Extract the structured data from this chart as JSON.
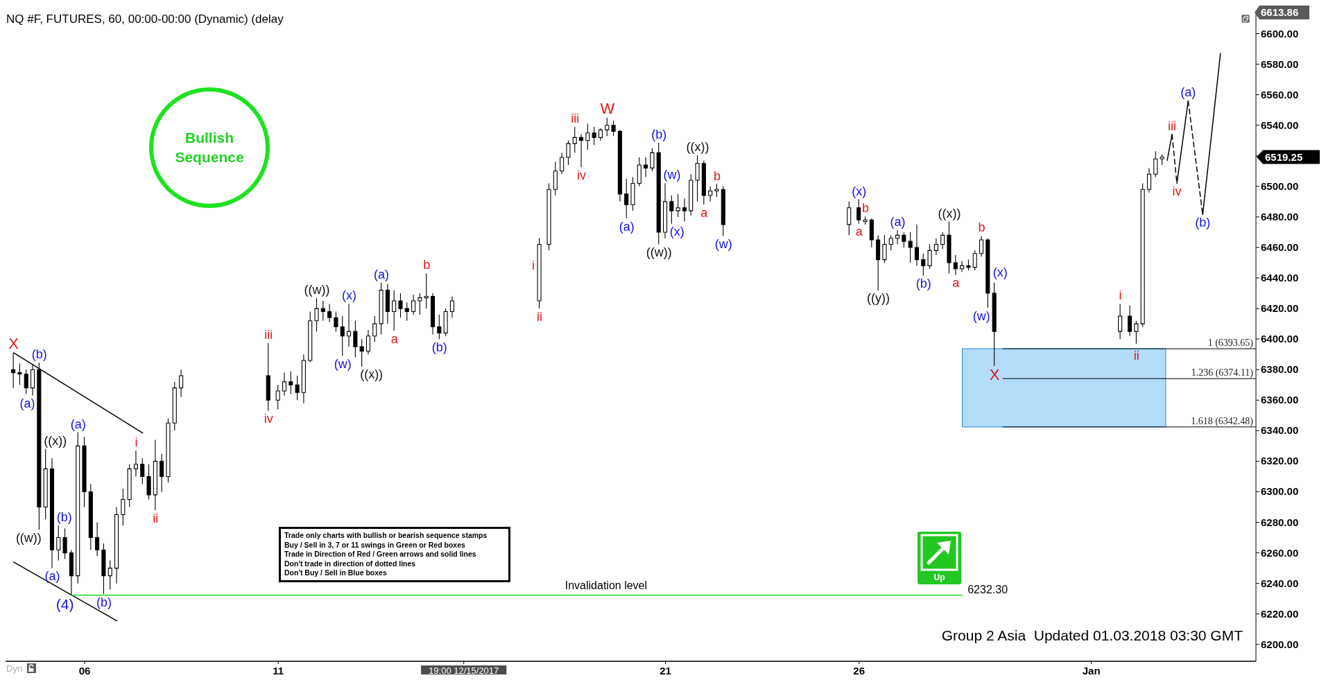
{
  "chart_data": {
    "type": "candlestick",
    "title": "NQ #F, FUTURES, 60, 00:00-00:00 (Dynamic) (delay",
    "color": "#000000",
    "x": [
      "2017-12-04T04:00",
      "2017-12-04T08:00",
      "2017-12-04T12:00",
      "2017-12-04T16:00",
      "2017-12-04T20:00",
      "2017-12-05T00:00",
      "2017-12-05T04:00",
      "2017-12-05T08:00",
      "2017-12-05T12:00",
      "2017-12-05T16:00",
      "2017-12-05T20:00",
      "2017-12-06T00:00",
      "2017-12-06T04:00",
      "2017-12-06T08:00",
      "2017-12-06T12:00",
      "2017-12-06T16:00",
      "2017-12-06T20:00",
      "2017-12-07T00:00",
      "2017-12-07T04:00",
      "2017-12-07T08:00",
      "2017-12-07T12:00",
      "2017-12-07T16:00",
      "2017-12-07T20:00",
      "2017-12-08T00:00",
      "2017-12-08T04:00",
      "2017-12-08T08:00",
      "2017-12-08T12:00",
      "2017-12-10T18:00",
      "2017-12-11T00:00",
      "2017-12-11T04:00",
      "2017-12-11T08:00",
      "2017-12-11T12:00",
      "2017-12-11T16:00",
      "2017-12-11T20:00",
      "2017-12-12T00:00",
      "2017-12-12T04:00",
      "2017-12-12T08:00",
      "2017-12-12T12:00",
      "2017-12-12T16:00",
      "2017-12-12T20:00",
      "2017-12-13T00:00",
      "2017-12-13T04:00",
      "2017-12-13T08:00",
      "2017-12-13T12:00",
      "2017-12-13T16:00",
      "2017-12-13T20:00",
      "2017-12-14T00:00",
      "2017-12-14T04:00",
      "2017-12-14T08:00",
      "2017-12-14T12:00",
      "2017-12-14T16:00",
      "2017-12-14T20:00",
      "2017-12-15T00:00",
      "2017-12-15T04:00",
      "2017-12-15T08:00",
      "2017-12-15T12:00",
      "2017-12-17T18:00",
      "2017-12-18T00:00",
      "2017-12-18T04:00",
      "2017-12-18T08:00",
      "2017-12-18T12:00",
      "2017-12-18T16:00",
      "2017-12-18T20:00",
      "2017-12-19T00:00",
      "2017-12-19T04:00",
      "2017-12-19T08:00",
      "2017-12-19T12:00",
      "2017-12-19T16:00",
      "2017-12-19T20:00",
      "2017-12-20T00:00",
      "2017-12-20T04:00",
      "2017-12-20T08:00",
      "2017-12-20T12:00",
      "2017-12-20T16:00",
      "2017-12-20T20:00",
      "2017-12-21T00:00",
      "2017-12-21T04:00",
      "2017-12-21T08:00",
      "2017-12-21T12:00",
      "2017-12-21T16:00",
      "2017-12-21T20:00",
      "2017-12-22T00:00",
      "2017-12-22T04:00",
      "2017-12-22T08:00",
      "2017-12-22T12:00",
      "2017-12-25T18:00",
      "2017-12-26T00:00",
      "2017-12-26T04:00",
      "2017-12-26T08:00",
      "2017-12-26T12:00",
      "2017-12-26T16:00",
      "2017-12-26T20:00",
      "2017-12-27T00:00",
      "2017-12-27T04:00",
      "2017-12-27T08:00",
      "2017-12-27T12:00",
      "2017-12-27T16:00",
      "2017-12-27T20:00",
      "2017-12-28T00:00",
      "2017-12-28T04:00",
      "2017-12-28T08:00",
      "2017-12-28T12:00",
      "2017-12-28T16:00",
      "2017-12-28T20:00",
      "2017-12-29T00:00",
      "2017-12-29T04:00",
      "2017-12-29T08:00",
      "2017-12-29T12:00",
      "2018-01-01T18:00",
      "2018-01-02T00:00",
      "2018-01-02T04:00",
      "2018-01-02T08:00",
      "2018-01-02T12:00",
      "2018-01-02T16:00",
      "2018-01-02T20:00"
    ],
    "ohlc": [
      [
        6380,
        6391,
        6368,
        6378
      ],
      [
        6378,
        6384,
        6370,
        6377
      ],
      [
        6377,
        6380,
        6364,
        6368
      ],
      [
        6368,
        6383,
        6363,
        6380
      ],
      [
        6380,
        6384.5,
        6275,
        6290
      ],
      [
        6290,
        6328,
        6282,
        6315
      ],
      [
        6315,
        6322,
        6250,
        6262
      ],
      [
        6262,
        6278,
        6255,
        6270
      ],
      [
        6270,
        6276,
        6256,
        6260
      ],
      [
        6260,
        6262,
        6232.25,
        6245
      ],
      [
        6245,
        6339,
        6240,
        6330
      ],
      [
        6330,
        6336,
        6290,
        6300
      ],
      [
        6300,
        6305,
        6262,
        6270
      ],
      [
        6270,
        6280,
        6258,
        6262
      ],
      [
        6262,
        6266,
        6233,
        6245
      ],
      [
        6245,
        6255,
        6236,
        6250
      ],
      [
        6250,
        6290,
        6240,
        6285
      ],
      [
        6285,
        6302,
        6278,
        6295
      ],
      [
        6295,
        6318,
        6290,
        6315
      ],
      [
        6315,
        6327,
        6310,
        6318
      ],
      [
        6318,
        6322,
        6305,
        6310
      ],
      [
        6310,
        6318,
        6295,
        6298
      ],
      [
        6298,
        6334,
        6288,
        6320
      ],
      [
        6320,
        6325,
        6300,
        6310
      ],
      [
        6310,
        6348,
        6306,
        6345
      ],
      [
        6345,
        6372,
        6340,
        6368
      ],
      [
        6368,
        6380,
        6362,
        6376
      ],
      [
        6376,
        6397.5,
        6353,
        6360
      ],
      [
        6360,
        6370,
        6354,
        6366
      ],
      [
        6366,
        6378,
        6363,
        6372
      ],
      [
        6372,
        6379,
        6364,
        6370
      ],
      [
        6370,
        6376,
        6360,
        6365
      ],
      [
        6365,
        6390,
        6358,
        6386
      ],
      [
        6386,
        6418,
        6385,
        6412
      ],
      [
        6412,
        6427,
        6405,
        6420
      ],
      [
        6420,
        6425,
        6412,
        6418
      ],
      [
        6418,
        6423,
        6411,
        6414
      ],
      [
        6414,
        6418,
        6405,
        6408
      ],
      [
        6408,
        6415,
        6389,
        6402
      ],
      [
        6402,
        6423,
        6395,
        6405
      ],
      [
        6405,
        6412,
        6388,
        6395
      ],
      [
        6395,
        6400,
        6382,
        6392
      ],
      [
        6392,
        6406,
        6390,
        6402
      ],
      [
        6402,
        6415,
        6398,
        6410
      ],
      [
        6410,
        6437,
        6403,
        6432
      ],
      [
        6432,
        6436,
        6410,
        6418
      ],
      [
        6418,
        6432,
        6405.5,
        6425
      ],
      [
        6425,
        6430,
        6414,
        6420
      ],
      [
        6420,
        6424,
        6412,
        6418
      ],
      [
        6418,
        6429,
        6416,
        6425
      ],
      [
        6425,
        6430,
        6416,
        6427
      ],
      [
        6427,
        6443,
        6420,
        6428
      ],
      [
        6428,
        6430,
        6403,
        6408
      ],
      [
        6408,
        6416,
        6400,
        6404
      ],
      [
        6404,
        6420,
        6402,
        6418
      ],
      [
        6418,
        6428,
        6414,
        6425
      ],
      [
        6425,
        6466,
        6420,
        6462
      ],
      [
        6462,
        6502,
        6458,
        6498
      ],
      [
        6498,
        6516,
        6494,
        6510
      ],
      [
        6510,
        6522,
        6508,
        6519
      ],
      [
        6519,
        6530,
        6514,
        6528
      ],
      [
        6528,
        6539,
        6522,
        6532
      ],
      [
        6532,
        6534,
        6512.5,
        6530
      ],
      [
        6530,
        6541,
        6524,
        6535
      ],
      [
        6535,
        6539,
        6527,
        6532
      ],
      [
        6532,
        6538,
        6530,
        6537
      ],
      [
        6537,
        6545,
        6533,
        6540
      ],
      [
        6540,
        6543,
        6533,
        6536
      ],
      [
        6536,
        6537,
        6490,
        6495
      ],
      [
        6495,
        6505,
        6479,
        6488
      ],
      [
        6488,
        6506,
        6484,
        6502
      ],
      [
        6502,
        6519,
        6500,
        6514
      ],
      [
        6514,
        6519,
        6506,
        6512
      ],
      [
        6512,
        6525,
        6510,
        6522
      ],
      [
        6522,
        6528.5,
        6462,
        6470
      ],
      [
        6470,
        6502,
        6466,
        6490
      ],
      [
        6490,
        6494,
        6475.5,
        6484
      ],
      [
        6484,
        6495,
        6480,
        6486
      ],
      [
        6486,
        6492,
        6477,
        6484
      ],
      [
        6484,
        6508,
        6481,
        6504
      ],
      [
        6504,
        6520.5,
        6490,
        6515
      ],
      [
        6515,
        6517,
        6488,
        6494
      ],
      [
        6494,
        6500,
        6490,
        6497
      ],
      [
        6497,
        6501.5,
        6493,
        6498
      ],
      [
        6498,
        6500,
        6467.5,
        6475
      ],
      [
        6475,
        6490,
        6468,
        6486
      ],
      [
        6486,
        6491.5,
        6475.5,
        6478
      ],
      [
        6477,
        6480.25,
        6475,
        6478
      ],
      [
        6478,
        6479,
        6460,
        6465
      ],
      [
        6465,
        6468,
        6432,
        6452
      ],
      [
        6452,
        6468,
        6450,
        6462
      ],
      [
        6462,
        6468,
        6458,
        6466
      ],
      [
        6466,
        6471.25,
        6462,
        6468
      ],
      [
        6468,
        6470,
        6460,
        6464
      ],
      [
        6464,
        6470,
        6450,
        6460
      ],
      [
        6460,
        6475,
        6448,
        6452
      ],
      [
        6452,
        6456,
        6441.5,
        6448
      ],
      [
        6448,
        6462,
        6446,
        6458
      ],
      [
        6458,
        6466,
        6455,
        6462
      ],
      [
        6462,
        6470,
        6459,
        6468
      ],
      [
        6468,
        6477,
        6443,
        6450
      ],
      [
        6450,
        6455,
        6442,
        6446
      ],
      [
        6446,
        6451,
        6444,
        6448
      ],
      [
        6448,
        6452,
        6445,
        6447
      ],
      [
        6447,
        6458,
        6445,
        6456
      ],
      [
        6456,
        6467.5,
        6454,
        6465
      ],
      [
        6465,
        6466,
        6420.5,
        6430
      ],
      [
        6430,
        6437,
        6382.5,
        6405
      ],
      [
        6405,
        6423,
        6400,
        6415
      ],
      [
        6415,
        6422,
        6402,
        6405
      ],
      [
        6405,
        6412,
        6397,
        6410
      ],
      [
        6410,
        6502,
        6408,
        6498
      ],
      [
        6498,
        6512,
        6496,
        6508
      ],
      [
        6508,
        6523,
        6506,
        6518
      ],
      [
        6518,
        6521,
        6514,
        6519.25
      ]
    ],
    "value_labels": [
      null,
      null,
      null,
      null,
      null,
      null,
      null,
      null,
      null,
      null,
      null,
      null,
      null,
      null,
      null,
      null,
      null,
      null,
      null,
      null,
      null,
      null,
      null,
      null,
      null,
      null,
      null,
      null,
      null,
      null,
      null,
      null,
      null,
      null,
      null,
      null,
      null,
      null,
      null,
      null,
      null,
      null,
      null,
      null,
      null,
      null,
      null,
      null,
      null,
      null,
      null,
      null,
      null,
      null,
      null,
      null,
      null,
      null,
      null,
      null,
      null,
      null,
      null,
      null,
      null,
      null,
      null,
      null,
      null,
      null,
      null,
      null,
      null,
      null,
      null,
      null,
      null,
      null,
      null,
      null,
      null,
      null,
      null,
      null,
      null,
      null,
      null,
      null,
      null,
      null,
      null,
      null,
      null,
      null,
      null,
      null,
      null,
      null,
      null,
      null,
      null,
      null,
      null,
      null,
      null,
      null,
      null,
      null,
      null,
      null,
      null,
      null,
      null,
      null,
      "6519.25"
    ],
    "series": [
      {
        "type": "line",
        "x": [
          "2017-12-04T04:00",
          "2017-12-07T12:00"
        ],
        "values": [
          6391,
          6338.5
        ],
        "color": "#000000",
        "line_style": "solid"
      },
      {
        "type": "line",
        "x": [
          "2017-12-04T04:00",
          "2017-12-06T20:00"
        ],
        "values": [
          6254,
          6215.5
        ],
        "color": "#000000",
        "line_style": "solid"
      },
      {
        "type": "line",
        "x": [
          "2018-01-02T23:00",
          "2018-01-03T02:00"
        ],
        "values": [
          6517,
          6534
        ],
        "color": "#000000",
        "line_style": "solid"
      },
      {
        "type": "line",
        "x": [
          "2018-01-03T02:00",
          "2018-01-03T05:00"
        ],
        "values": [
          6534,
          6502
        ],
        "color": "#000000",
        "line_style": "dashed"
      },
      {
        "type": "line",
        "x": [
          "2018-01-03T05:00",
          "2018-01-03T12:00"
        ],
        "values": [
          6502,
          6556
        ],
        "color": "#000000",
        "line_style": "solid"
      },
      {
        "type": "line",
        "x": [
          "2018-01-03T12:00",
          "2018-01-03T21:00"
        ],
        "values": [
          6556,
          6481.5
        ],
        "color": "#000000",
        "line_style": "dashed"
      },
      {
        "type": "line",
        "x": [
          "2018-01-03T21:00",
          "2018-01-04T08:00"
        ],
        "values": [
          6481.5,
          6587
        ],
        "color": "#000000",
        "line_style": "solid"
      }
    ],
    "xlim": [
      "2017-12-03T23:00",
      "2018-01-05T06:00"
    ],
    "xticks": [
      {
        "value": "2017-12-06",
        "label": "06"
      },
      {
        "value": "2017-12-11",
        "label": "11"
      },
      {
        "value": "2017-12-15T19:00",
        "label": "19:00 12/15/2017"
      },
      {
        "value": "2017-12-21",
        "label": "21"
      },
      {
        "value": "2017-12-26",
        "label": "26"
      },
      {
        "value": "2018-01-01",
        "label": "Jan"
      }
    ],
    "ylim": [
      6189,
      6613.86
    ],
    "yticks": [
      {
        "value": 6200,
        "label": "6200.00"
      },
      {
        "value": 6220,
        "label": "6220.00"
      },
      {
        "value": 6240,
        "label": "6240.00"
      },
      {
        "value": 6260,
        "label": "6260.00"
      },
      {
        "value": 6280,
        "label": "6280.00"
      },
      {
        "value": 6300,
        "label": "6300.00"
      },
      {
        "value": 6320,
        "label": "6320.00"
      },
      {
        "value": 6340,
        "label": "6340.00"
      },
      {
        "value": 6360,
        "label": "6360.00"
      },
      {
        "value": 6380,
        "label": "6380.00"
      },
      {
        "value": 6400,
        "label": "6400.00"
      },
      {
        "value": 6420,
        "label": "6420.00"
      },
      {
        "value": 6440,
        "label": "6440.00"
      },
      {
        "value": 6460,
        "label": "6460.00"
      },
      {
        "value": 6480,
        "label": "6480.00"
      },
      {
        "value": 6500,
        "label": "6500.00"
      },
      {
        "value": 6520,
        "label": null
      },
      {
        "value": 6540,
        "label": "6540.00"
      },
      {
        "value": 6560,
        "label": "6560.00"
      },
      {
        "value": 6580,
        "label": "6580.00"
      },
      {
        "value": 6600,
        "label": "6600.00"
      },
      {
        "value": 6613.86,
        "label": "6613.86"
      }
    ],
    "bands": [
      {
        "axis": "y",
        "from": 6342.48,
        "to": 6393.65,
        "color": "#b3dcf9"
      }
    ],
    "ref_lines": [
      {
        "axis": "y",
        "value": 6232.3,
        "label": "Invalidation level",
        "color": "#33dd33"
      },
      {
        "axis": "y",
        "value": 6393.65,
        "label": "1 (6393.65)",
        "color": "#000000"
      },
      {
        "axis": "y",
        "value": 6374.11,
        "label": "1.236 (6374.11)",
        "color": "#000000"
      },
      {
        "axis": "y",
        "value": 6342.48,
        "label": "1.618 (6342.48)",
        "color": "#000000"
      }
    ],
    "annotations": [
      {
        "text": "X",
        "x": "2017-12-04T04:00",
        "y": 6391
      },
      {
        "text": "(a)",
        "x": "2017-12-04T16:00",
        "y": 6363
      },
      {
        "text": "(b)",
        "x": "2017-12-04T20:00",
        "y": 6384.5
      },
      {
        "text": "((w))",
        "x": "2017-12-04T20:00",
        "y": 6275
      },
      {
        "text": "((x))",
        "x": "2017-12-05T00:00",
        "y": 6328
      },
      {
        "text": "(a)",
        "x": "2017-12-05T04:00",
        "y": 6250
      },
      {
        "text": "(b)",
        "x": "2017-12-05T08:00",
        "y": 6278
      },
      {
        "text": "(4)",
        "x": "2017-12-05T16:00",
        "y": 6232.25
      },
      {
        "text": "(a)",
        "x": "2017-12-05T20:00",
        "y": 6339
      },
      {
        "text": "(b)",
        "x": "2017-12-06T12:00",
        "y": 6233
      },
      {
        "text": "i",
        "x": "2017-12-07T08:00",
        "y": 6327
      },
      {
        "text": "ii",
        "x": "2017-12-07T20:00",
        "y": 6288
      },
      {
        "text": "iii",
        "x": "2017-12-10T18:00",
        "y": 6397.5
      },
      {
        "text": "iv",
        "x": "2017-12-10T18:00",
        "y": 6353
      },
      {
        "text": "((w))",
        "x": "2017-12-12T00:00",
        "y": 6427
      },
      {
        "text": "(w)",
        "x": "2017-12-12T16:00",
        "y": 6389
      },
      {
        "text": "(x)",
        "x": "2017-12-12T20:00",
        "y": 6423
      },
      {
        "text": "((x))",
        "x": "2017-12-13T04:00",
        "y": 6382
      },
      {
        "text": "(a)",
        "x": "2017-12-13T16:00",
        "y": 6437
      },
      {
        "text": "a",
        "x": "2017-12-14T00:00",
        "y": 6405.5
      },
      {
        "text": "b",
        "x": "2017-12-14T20:00",
        "y": 6443
      },
      {
        "text": "(b)",
        "x": "2017-12-15T04:00",
        "y": 6400
      },
      {
        "text": "ii",
        "x": "2017-12-17T18:00",
        "y": 6420
      },
      {
        "text": "i",
        "x": "2017-12-17T18:00",
        "y": 6448
      },
      {
        "text": "iii",
        "x": "2017-12-18T16:00",
        "y": 6539
      },
      {
        "text": "iv",
        "x": "2017-12-18T20:00",
        "y": 6512.5
      },
      {
        "text": "W",
        "x": "2017-12-19T12:00",
        "y": 6545
      },
      {
        "text": "(a)",
        "x": "2017-12-20T00:00",
        "y": 6479
      },
      {
        "text": "(b)",
        "x": "2017-12-20T20:00",
        "y": 6528.5
      },
      {
        "text": "((w))",
        "x": "2017-12-20T20:00",
        "y": 6462
      },
      {
        "text": "(w)",
        "x": "2017-12-21T00:00",
        "y": 6502
      },
      {
        "text": "(x)",
        "x": "2017-12-21T04:00",
        "y": 6475.5
      },
      {
        "text": "((x))",
        "x": "2017-12-21T20:00",
        "y": 6520.5
      },
      {
        "text": "a",
        "x": "2017-12-22T00:00",
        "y": 6488
      },
      {
        "text": "b",
        "x": "2017-12-22T08:00",
        "y": 6501.5
      },
      {
        "text": "(w)",
        "x": "2017-12-22T12:00",
        "y": 6467.5
      },
      {
        "text": "(x)",
        "x": "2017-12-26T00:00",
        "y": 6491.5
      },
      {
        "text": "a",
        "x": "2017-12-26T00:00",
        "y": 6475.5
      },
      {
        "text": "b",
        "x": "2017-12-26T04:00",
        "y": 6480.25
      },
      {
        "text": "((y))",
        "x": "2017-12-26T12:00",
        "y": 6432
      },
      {
        "text": "(a)",
        "x": "2017-12-27T00:00",
        "y": 6471.25
      },
      {
        "text": "(b)",
        "x": "2017-12-27T16:00",
        "y": 6441.5
      },
      {
        "text": "((x))",
        "x": "2017-12-28T08:00",
        "y": 6477
      },
      {
        "text": "a",
        "x": "2017-12-28T12:00",
        "y": 6442
      },
      {
        "text": "b",
        "x": "2017-12-29T04:00",
        "y": 6467.5
      },
      {
        "text": "(x)",
        "x": "2017-12-29T08:00",
        "y": 6443.5
      },
      {
        "text": "(w)",
        "x": "2017-12-29T08:00",
        "y": 6420.5
      },
      {
        "text": "X",
        "x": "2017-12-29T12:00",
        "y": 6382.5
      },
      {
        "text": "i",
        "x": "2018-01-01T18:00",
        "y": 6423
      },
      {
        "text": "ii",
        "x": "2018-01-02T04:00",
        "y": 6397
      },
      {
        "text": "iii",
        "x": "2018-01-03T02:00",
        "y": 6534
      },
      {
        "text": "iv",
        "x": "2018-01-03T05:00",
        "y": 6502
      },
      {
        "text": "(a)",
        "x": "2018-01-03T12:00",
        "y": 6556
      },
      {
        "text": "(b)",
        "x": "2018-01-03T21:00",
        "y": 6481.5
      },
      {
        "text": "6232.30",
        "x": "2017-12-28T18:00",
        "y": 6232.3
      },
      "Bullish Sequence",
      "Trade only charts with bullish or bearish sequence stamps",
      "Buy / Sell in 3, 7 or 11 swings in Green or Red boxes",
      "Trade in Direction of Red / Green arrows and solid lines",
      "Don't trade in direction of dotted lines",
      "Don't Buy / Sell in Blue boxes",
      "Up",
      "Group 2 Asia  Updated 01.03.2018 03:30 GMT",
      "Dyn"
    ]
  }
}
